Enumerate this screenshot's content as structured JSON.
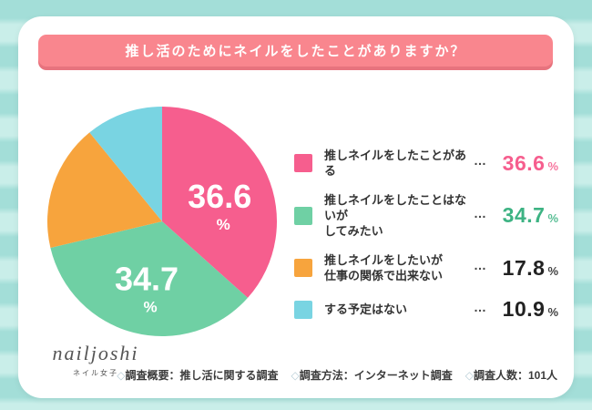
{
  "chart_data": {
    "type": "pie",
    "title": "推し活のためにネイルをしたことがありますか？",
    "labels": [
      "推しネイルをしたことがある",
      "推しネイルをしたことはないがしてみたい",
      "推しネイルをしたいが仕事の関係で出来ない",
      "する予定はない"
    ],
    "values": [
      36.6,
      34.7,
      17.8,
      10.9
    ],
    "unit": "%",
    "colors": [
      "#f65e8e",
      "#6fd0a4",
      "#f7a43d",
      "#79d4e2"
    ],
    "value_text_colors": [
      "#f65e8e",
      "#3db383",
      "#222222",
      "#222222"
    ],
    "inner_label_slices": [
      0,
      1
    ],
    "start_angle_deg": 0,
    "direction": "clockwise",
    "legend_position": "right"
  },
  "legend": {
    "separator": "…",
    "items": [
      {
        "label_lines": [
          "推しネイルをしたことがある"
        ],
        "value": "36.6",
        "unit": "%"
      },
      {
        "label_lines": [
          "推しネイルをしたことはないが",
          "してみたい"
        ],
        "value": "34.7",
        "unit": "%"
      },
      {
        "label_lines": [
          "推しネイルをしたいが",
          "仕事の関係で出来ない"
        ],
        "value": "17.8",
        "unit": "%"
      },
      {
        "label_lines": [
          "する予定はない"
        ],
        "value": "10.9",
        "unit": "%"
      }
    ]
  },
  "footer": {
    "logo": "nailjoshi",
    "logo_sub": "ネイル女子",
    "note_marker": "◇",
    "notes": [
      "調査概要：推し活に関する調査",
      "調査方法：インターネット調査",
      "調査人数：101人"
    ]
  },
  "colors": {
    "banner_bg": "#f9868e",
    "banner_shadow": "#e7737e",
    "banner_text": "#ffffff",
    "card_bg": "#ffffff",
    "stripe_dark": "#a3ded8",
    "stripe_light": "#c9eee9",
    "pie_label_text": "#ffffff",
    "legend_label": "#333333",
    "dots": "#444444",
    "note_marker_color": "#b7cdd6",
    "note_text": "#3b3b3b",
    "logo_color": "#555555"
  }
}
